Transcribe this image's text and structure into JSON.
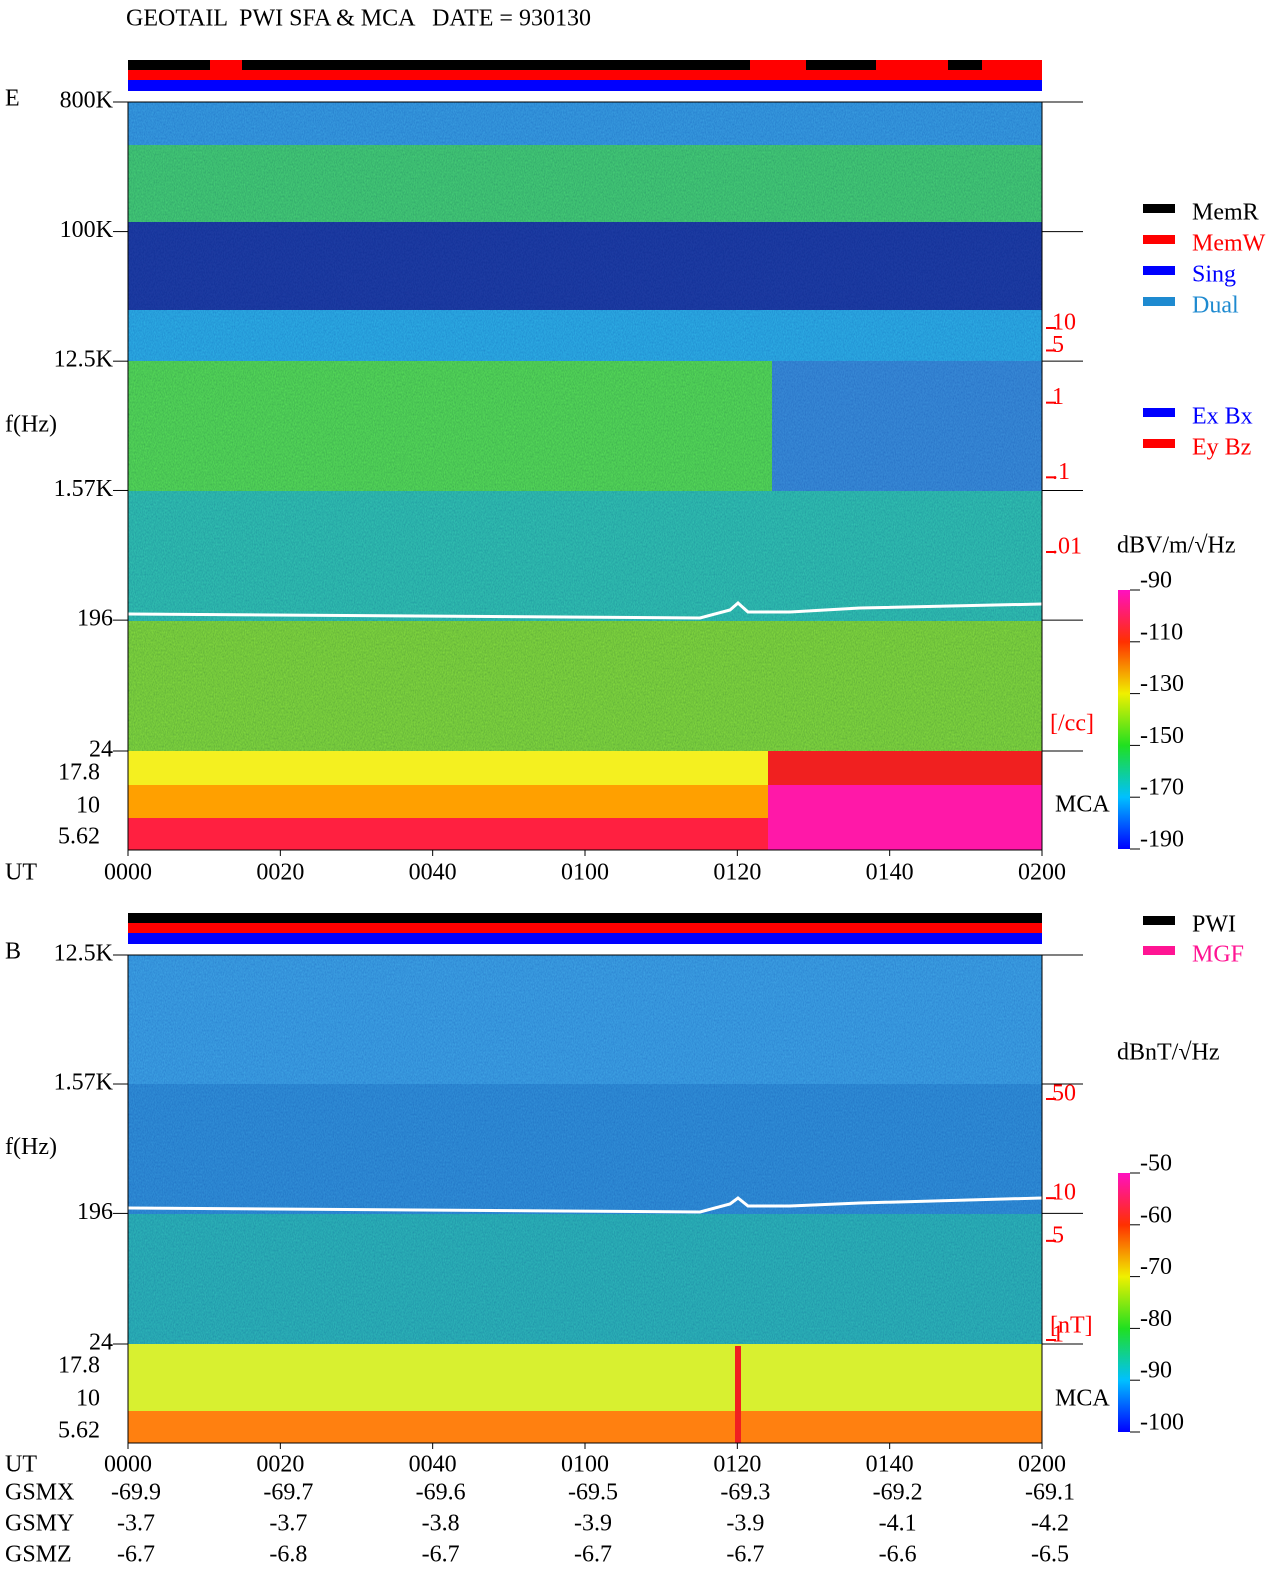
{
  "header": {
    "title": "GEOTAIL  PWI SFA & MCA   DATE = 930130"
  },
  "chart_data": [
    {
      "type": "spectrogram",
      "panel_label": "E",
      "y_label": "f(Hz)",
      "x_label": "UT",
      "log_y": true,
      "ylim": [
        24,
        800000
      ],
      "yticks": [
        {
          "value": 800000,
          "label": "800K"
        },
        {
          "value": 100000,
          "label": "100K"
        },
        {
          "value": 12500,
          "label": "12.5K"
        },
        {
          "value": 1570,
          "label": "1.57K"
        },
        196,
        24
      ],
      "mca_label": "MCA",
      "mca_ticks": [
        17.8,
        10,
        5.62
      ],
      "xlim": [
        0,
        120
      ],
      "xticks": [
        {
          "value": 0,
          "label": "0000"
        },
        {
          "value": 20,
          "label": "0020"
        },
        {
          "value": 40,
          "label": "0040"
        },
        {
          "value": 60,
          "label": "0100"
        },
        {
          "value": 80,
          "label": "0120"
        },
        {
          "value": 100,
          "label": "0140"
        },
        {
          "value": 120,
          "label": "0200"
        }
      ],
      "density_label": "[/cc]",
      "density_lim": [
        0.01,
        10
      ],
      "density_color": "#ff0000",
      "density_ticks": [
        10,
        5,
        1,
        {
          "value": 0.1,
          "label": ".1"
        },
        {
          "value": 0.01,
          "label": ".01"
        }
      ],
      "colorbar": {
        "label": "dBV/m/√Hz",
        "lim": [
          -190,
          -90
        ],
        "ticks": [
          -90,
          -110,
          -130,
          -150,
          -170,
          -190
        ]
      },
      "legend": [
        {
          "name": "MemR",
          "color": "#000000"
        },
        {
          "name": "MemW",
          "color": "#ff0000"
        },
        {
          "name": "Sing",
          "color": "#0000ff"
        },
        {
          "name": "Dual",
          "color": "#1e8ad0"
        }
      ],
      "legend_components": [
        {
          "name": "Ex Bx",
          "color": "#0000ff"
        },
        {
          "name": "Ey Bz",
          "color": "#ff0000"
        }
      ]
    },
    {
      "type": "spectrogram",
      "panel_label": "B",
      "y_label": "f(Hz)",
      "x_label": "UT",
      "log_y": true,
      "ylim": [
        24,
        12500
      ],
      "yticks": [
        {
          "value": 12500,
          "label": "12.5K"
        },
        {
          "value": 1570,
          "label": "1.57K"
        },
        196,
        24
      ],
      "mca_label": "MCA",
      "mca_ticks": [
        17.8,
        10,
        5.62
      ],
      "xlim": [
        0,
        120
      ],
      "xticks": [
        {
          "value": 0,
          "label": "0000"
        },
        {
          "value": 20,
          "label": "0020"
        },
        {
          "value": 40,
          "label": "0040"
        },
        {
          "value": 60,
          "label": "0100"
        },
        {
          "value": 80,
          "label": "0120"
        },
        {
          "value": 100,
          "label": "0140"
        },
        {
          "value": 120,
          "label": "0200"
        }
      ],
      "density_label": "[nT]",
      "density_lim": [
        1,
        50
      ],
      "density_color": "#ff0000",
      "density_ticks": [
        50,
        10,
        5,
        1
      ],
      "colorbar": {
        "label": "dBnT/√Hz",
        "lim": [
          -100,
          -50
        ],
        "ticks": [
          -50,
          -60,
          -70,
          -80,
          -90,
          -100
        ]
      },
      "legend": [
        {
          "name": "PWI",
          "color": "#000000"
        },
        {
          "name": "MGF",
          "color": "#ff1493"
        }
      ]
    }
  ],
  "orbit_table": {
    "rows": [
      {
        "label": "GSMX",
        "values": [
          -69.9,
          -69.7,
          -69.6,
          -69.5,
          -69.3,
          -69.2,
          -69.1
        ]
      },
      {
        "label": "GSMY",
        "values": [
          -3.7,
          -3.7,
          -3.8,
          -3.9,
          -3.9,
          -4.1,
          -4.2
        ]
      },
      {
        "label": "GSMZ",
        "values": [
          -6.7,
          -6.8,
          -6.7,
          -6.7,
          -6.7,
          -6.6,
          -6.5
        ]
      }
    ]
  }
}
